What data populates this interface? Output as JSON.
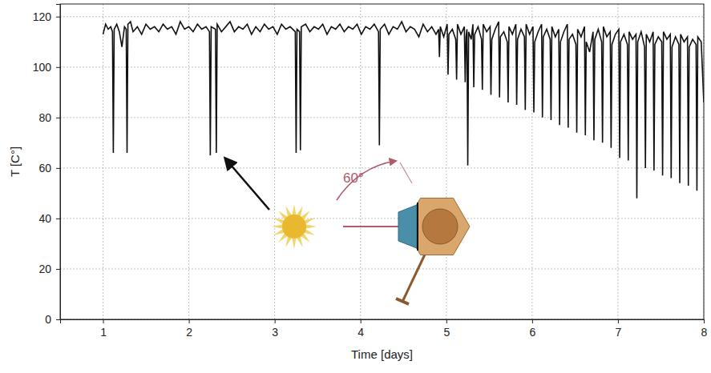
{
  "chart_data": {
    "type": "line",
    "x_label": "Time [days]",
    "y_label": "T [C°]",
    "annotation": "60°",
    "color": "#111111",
    "grid": true,
    "xlim": [
      0.5,
      8
    ],
    "ylim": [
      0,
      125
    ],
    "xticks": [
      1,
      2,
      3,
      4,
      5,
      6,
      7,
      8
    ],
    "yticks": [
      0,
      20,
      40,
      60,
      80,
      100,
      120
    ],
    "x": [
      1.0,
      1.03,
      1.06,
      1.09,
      1.11,
      1.12,
      1.13,
      1.16,
      1.19,
      1.22,
      1.25,
      1.27,
      1.28,
      1.29,
      1.32,
      1.35,
      1.4,
      1.45,
      1.5,
      1.55,
      1.6,
      1.65,
      1.7,
      1.75,
      1.8,
      1.85,
      1.9,
      1.95,
      2.0,
      2.05,
      2.1,
      2.15,
      2.2,
      2.24,
      2.25,
      2.26,
      2.31,
      2.32,
      2.33,
      2.38,
      2.43,
      2.48,
      2.53,
      2.58,
      2.63,
      2.68,
      2.73,
      2.78,
      2.83,
      2.88,
      2.93,
      2.98,
      3.03,
      3.08,
      3.13,
      3.18,
      3.24,
      3.25,
      3.26,
      3.29,
      3.3,
      3.31,
      3.36,
      3.41,
      3.46,
      3.51,
      3.56,
      3.61,
      3.66,
      3.71,
      3.76,
      3.81,
      3.86,
      3.91,
      3.96,
      4.01,
      4.06,
      4.11,
      4.16,
      4.21,
      4.22,
      4.23,
      4.28,
      4.33,
      4.38,
      4.43,
      4.48,
      4.53,
      4.58,
      4.63,
      4.68,
      4.73,
      4.78,
      4.83,
      4.88,
      4.91,
      4.92,
      4.93,
      4.97,
      5.01,
      5.02,
      5.03,
      5.07,
      5.11,
      5.12,
      5.13,
      5.17,
      5.21,
      5.22,
      5.23,
      5.24,
      5.25,
      5.26,
      5.29,
      5.31,
      5.32,
      5.33,
      5.37,
      5.41,
      5.42,
      5.43,
      5.47,
      5.51,
      5.52,
      5.53,
      5.57,
      5.61,
      5.62,
      5.63,
      5.67,
      5.71,
      5.72,
      5.73,
      5.77,
      5.81,
      5.82,
      5.83,
      5.87,
      5.91,
      5.92,
      5.93,
      5.97,
      6.01,
      6.02,
      6.03,
      6.07,
      6.11,
      6.12,
      6.13,
      6.17,
      6.21,
      6.22,
      6.23,
      6.27,
      6.31,
      6.32,
      6.33,
      6.37,
      6.41,
      6.42,
      6.43,
      6.47,
      6.51,
      6.52,
      6.53,
      6.57,
      6.61,
      6.62,
      6.63,
      6.67,
      6.71,
      6.72,
      6.73,
      6.77,
      6.81,
      6.82,
      6.83,
      6.87,
      6.91,
      6.92,
      6.93,
      6.97,
      7.01,
      7.02,
      7.03,
      7.07,
      7.11,
      7.12,
      7.13,
      7.17,
      7.21,
      7.22,
      7.23,
      7.27,
      7.31,
      7.32,
      7.33,
      7.37,
      7.41,
      7.42,
      7.43,
      7.47,
      7.51,
      7.52,
      7.53,
      7.57,
      7.61,
      7.62,
      7.63,
      7.67,
      7.71,
      7.72,
      7.73,
      7.77,
      7.81,
      7.82,
      7.83,
      7.87,
      7.91,
      7.92,
      7.93,
      7.97,
      8.0
    ],
    "values": [
      113,
      117,
      115,
      116,
      114,
      66,
      115,
      117,
      114,
      108,
      116,
      115,
      66,
      117,
      118,
      114,
      116,
      113,
      117,
      115,
      116,
      114,
      117,
      115,
      116,
      113,
      118,
      115,
      116,
      114,
      117,
      115,
      116,
      114,
      65,
      116,
      115,
      66,
      117,
      114,
      116,
      118,
      114,
      116,
      115,
      117,
      113,
      116,
      114,
      117,
      115,
      116,
      113,
      117,
      115,
      116,
      114,
      66,
      115,
      114,
      67,
      116,
      117,
      114,
      116,
      115,
      117,
      113,
      116,
      115,
      117,
      114,
      116,
      115,
      117,
      113,
      116,
      115,
      117,
      114,
      69,
      115,
      117,
      113,
      116,
      115,
      118,
      114,
      116,
      115,
      112,
      117,
      114,
      116,
      113,
      115,
      104,
      116,
      112,
      117,
      97,
      113,
      115,
      111,
      95,
      117,
      113,
      116,
      94,
      112,
      115,
      61,
      114,
      111,
      117,
      92,
      113,
      116,
      111,
      91,
      117,
      114,
      116,
      89,
      111,
      115,
      118,
      88,
      112,
      114,
      110,
      86,
      116,
      113,
      117,
      85,
      111,
      115,
      112,
      83,
      117,
      113,
      116,
      82,
      110,
      114,
      117,
      80,
      112,
      115,
      111,
      79,
      116,
      112,
      115,
      77,
      110,
      114,
      117,
      76,
      111,
      113,
      109,
      74,
      115,
      112,
      116,
      73,
      110,
      106,
      114,
      71,
      111,
      115,
      110,
      70,
      116,
      112,
      114,
      68,
      109,
      113,
      115,
      64,
      110,
      113,
      109,
      63,
      114,
      111,
      113,
      48,
      110,
      114,
      108,
      60,
      113,
      110,
      114,
      59,
      109,
      112,
      110,
      57,
      114,
      111,
      113,
      56,
      108,
      112,
      109,
      54,
      113,
      110,
      112,
      53,
      108,
      111,
      109,
      51,
      112,
      110,
      86
    ]
  }
}
